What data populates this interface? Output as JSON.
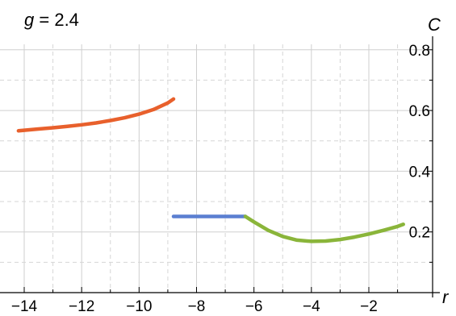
{
  "title": {
    "variable": "g",
    "equals": " = ",
    "value": "2.4"
  },
  "chart_data": {
    "type": "line",
    "xlabel": "r",
    "ylabel": "C",
    "xlim": [
      -14.2,
      -0.6
    ],
    "ylim": [
      0.0,
      0.81
    ],
    "xticks": [
      -14,
      -12,
      -10,
      -8,
      -6,
      -4,
      -2
    ],
    "xtick_labels": [
      "−14",
      "−12",
      "−10",
      "−8",
      "−6",
      "−4",
      "−2"
    ],
    "yticks": [
      0.2,
      0.4,
      0.6,
      0.8
    ],
    "ytick_labels": [
      "0.2",
      "0.4",
      "0.6",
      "0.8"
    ],
    "xgrid": [
      -14,
      -13,
      -12,
      -11,
      -10,
      -9,
      -8,
      -7,
      -6,
      -5,
      -4,
      -3,
      -2,
      -1
    ],
    "ygrid": [
      0.1,
      0.2,
      0.3,
      0.4,
      0.5,
      0.6,
      0.7,
      0.8
    ],
    "grid": true,
    "series": [
      {
        "color": "#e8602c",
        "x": [
          -14.2,
          -13.5,
          -13,
          -12.5,
          -12,
          -11.5,
          -11,
          -10.5,
          -10,
          -9.5,
          -9,
          -8.8
        ],
        "y": [
          0.533,
          0.539,
          0.543,
          0.548,
          0.553,
          0.559,
          0.567,
          0.576,
          0.588,
          0.603,
          0.625,
          0.638
        ]
      },
      {
        "color": "#5b7fd1",
        "x": [
          -8.8,
          -6.3
        ],
        "y": [
          0.251,
          0.251
        ]
      },
      {
        "color": "#8ab53a",
        "x": [
          -6.3,
          -6.0,
          -5.5,
          -5.0,
          -4.5,
          -4.0,
          -3.5,
          -3.0,
          -2.5,
          -2.0,
          -1.5,
          -1.0,
          -0.8
        ],
        "y": [
          0.251,
          0.233,
          0.205,
          0.185,
          0.173,
          0.169,
          0.17,
          0.175,
          0.183,
          0.193,
          0.205,
          0.218,
          0.225
        ]
      }
    ]
  }
}
